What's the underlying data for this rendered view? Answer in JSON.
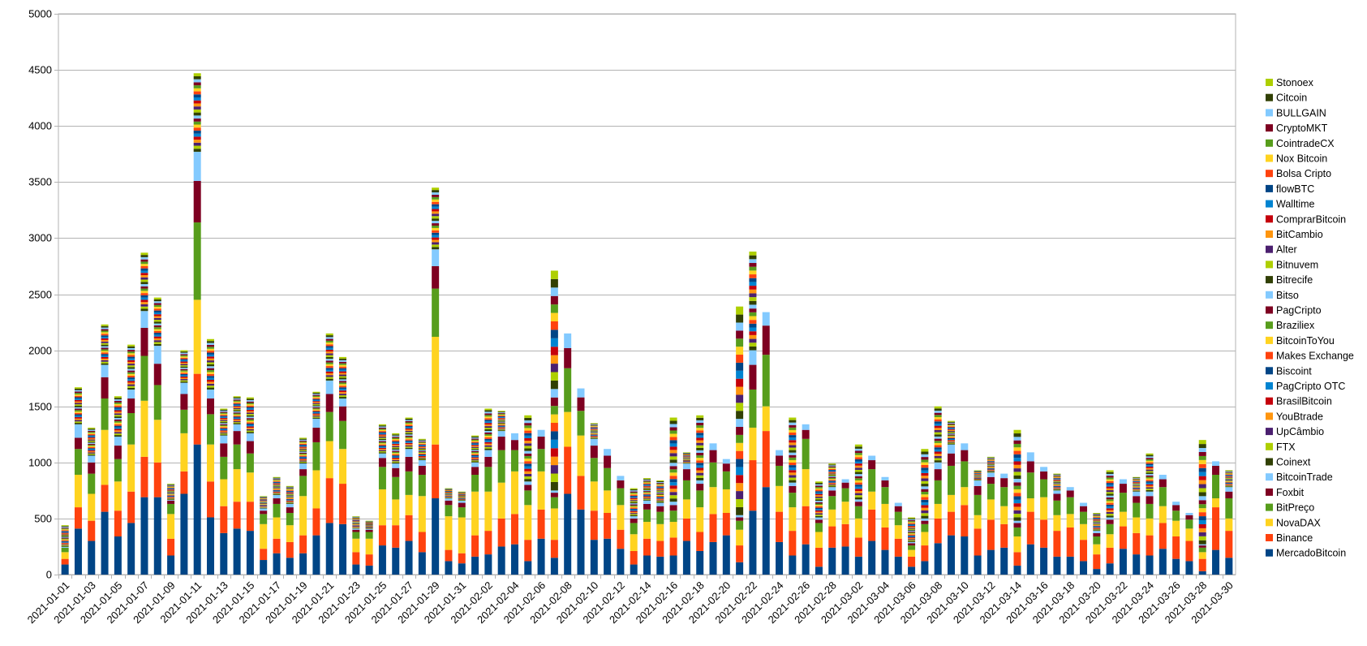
{
  "chart_data": {
    "type": "bar",
    "stacked": true,
    "grid": true,
    "legend_position": "right",
    "ylim": [
      0,
      5000
    ],
    "yticks": [
      0,
      500,
      1000,
      1500,
      2000,
      2500,
      3000,
      3500,
      4000,
      4500,
      5000
    ],
    "x_tick_labels": [
      "2021-01-01",
      "2021-01-03",
      "2021-01-05",
      "2021-01-07",
      "2021-01-09",
      "2021-01-11",
      "2021-01-13",
      "2021-01-15",
      "2021-01-17",
      "2021-01-19",
      "2021-01-21",
      "2021-01-23",
      "2021-01-25",
      "2021-01-27",
      "2021-01-29",
      "2021-01-31",
      "2021-02-02",
      "2021-02-04",
      "2021-02-06",
      "2021-02-08",
      "2021-02-10",
      "2021-02-12",
      "2021-02-14",
      "2021-02-16",
      "2021-02-18",
      "2021-02-20",
      "2021-02-22",
      "2021-02-24",
      "2021-02-26",
      "2021-02-28",
      "2021-03-02",
      "2021-03-04",
      "2021-03-06",
      "2021-03-08",
      "2021-03-10",
      "2021-03-12",
      "2021-03-14",
      "2021-03-16",
      "2021-03-18",
      "2021-03-20",
      "2021-03-22",
      "2021-03-24",
      "2021-03-26",
      "2021-03-28",
      "2021-03-30"
    ],
    "series_names": [
      "MercadoBitcoin",
      "Binance",
      "NovaDAX",
      "BitPreço",
      "Foxbit",
      "BitcoinTrade",
      "Coinext",
      "FTX",
      "UpCâmbio",
      "YouBtrade",
      "BrasilBitcoin",
      "PagCripto OTC",
      "Biscoint",
      "Makes Exchange",
      "BitcoinToYou",
      "Braziliex",
      "PagCripto",
      "Bitso",
      "Bitrecife",
      "Bitnuvem",
      "Alter",
      "BitCambio",
      "ComprarBitcoin",
      "Walltime",
      "flowBTC",
      "Bolsa Cripto",
      "Nox Bitcoin",
      "CointradeCX",
      "CryptoMKT",
      "BULLGAIN",
      "Citcoin",
      "Stonoex"
    ],
    "series_colors": [
      "#004586",
      "#ff420e",
      "#ffd320",
      "#579d1c",
      "#7e0021",
      "#83caff",
      "#314004",
      "#aecf00",
      "#4b1f6f",
      "#ff950e",
      "#c5000b",
      "#0084d1",
      "#004586",
      "#ff420e",
      "#ffd320",
      "#579d1c",
      "#7e0021",
      "#83caff",
      "#314004",
      "#aecf00",
      "#4b1f6f",
      "#ff950e",
      "#c5000b",
      "#0084d1",
      "#004586",
      "#ff420e",
      "#ffd320",
      "#579d1c",
      "#7e0021",
      "#83caff",
      "#314004",
      "#aecf00"
    ],
    "totals": [
      440,
      1670,
      1310,
      2230,
      1590,
      2050,
      2870,
      2470,
      810,
      2000,
      4470,
      2100,
      1480,
      1590,
      1580,
      700,
      870,
      790,
      1220,
      1630,
      2150,
      1940,
      520,
      480,
      1340,
      1260,
      1400,
      1210,
      3450,
      770,
      740,
      1240,
      1480,
      1460,
      990,
      1420,
      920,
      2710,
      2010,
      1380,
      1350,
      1010,
      600,
      770,
      860,
      840,
      1400,
      1090,
      1420,
      1150,
      620,
      2390,
      2880,
      1290,
      910,
      1400,
      570,
      830,
      990,
      720,
      1160,
      940,
      690,
      300,
      510,
      1120,
      1500,
      1370,
      890,
      930,
      1050,
      490,
      1290,
      1070,
      850,
      900,
      770,
      480,
      550,
      930,
      820,
      870,
      1080,
      790,
      650,
      310,
      1200,
      960,
      930
    ],
    "bases": [
      [
        90,
        50,
        60,
        40,
        0
      ],
      [
        410,
        190,
        290,
        230,
        100,
        120
      ],
      [
        300,
        180,
        240,
        180,
        100,
        60
      ],
      [
        560,
        240,
        490,
        280,
        190,
        110
      ],
      [
        340,
        230,
        260,
        200,
        120,
        80
      ],
      [
        460,
        280,
        420,
        280,
        130,
        80
      ],
      [
        690,
        360,
        500,
        400,
        250,
        150
      ],
      [
        690,
        310,
        380,
        310,
        190,
        160
      ],
      [
        170,
        150,
        220,
        90,
        30
      ],
      [
        720,
        200,
        340,
        210,
        140,
        100
      ],
      [
        1160,
        630,
        660,
        690,
        370,
        260
      ],
      [
        510,
        320,
        330,
        270,
        140,
        80
      ],
      [
        370,
        240,
        240,
        200,
        120,
        70
      ],
      [
        410,
        240,
        290,
        220,
        120,
        60
      ],
      [
        390,
        260,
        260,
        170,
        110,
        70
      ],
      [
        130,
        100,
        220,
        90,
        30,
        20
      ],
      [
        190,
        130,
        190,
        120,
        50,
        30
      ],
      [
        150,
        140,
        150,
        110,
        50,
        30
      ],
      [
        190,
        160,
        350,
        180,
        60,
        50
      ],
      [
        350,
        240,
        340,
        250,
        130,
        80
      ],
      [
        460,
        400,
        330,
        260,
        160,
        120
      ],
      [
        450,
        360,
        310,
        250,
        130,
        70
      ],
      [
        90,
        110,
        120,
        60,
        20,
        10
      ],
      [
        80,
        100,
        140,
        60,
        20,
        10
      ],
      [
        260,
        180,
        320,
        200,
        80,
        40
      ],
      [
        240,
        200,
        230,
        200,
        80,
        40
      ],
      [
        300,
        230,
        180,
        210,
        130,
        70
      ],
      [
        200,
        180,
        320,
        190,
        80,
        50
      ],
      [
        680,
        480,
        960,
        430,
        200,
        150
      ],
      [
        120,
        100,
        300,
        100,
        40,
        20
      ],
      [
        100,
        90,
        320,
        90,
        40,
        20
      ],
      [
        160,
        190,
        390,
        150,
        70,
        40
      ],
      [
        180,
        210,
        350,
        220,
        90,
        60
      ],
      [
        250,
        250,
        320,
        290,
        120,
        50
      ],
      [
        270,
        270,
        380,
        190,
        90,
        60
      ],
      [
        120,
        190,
        310,
        130,
        50,
        30
      ],
      [
        320,
        260,
        340,
        200,
        110,
        60
      ],
      [
        150,
        160,
        280,
        100,
        40,
        20
      ],
      [
        720,
        420,
        310,
        390,
        180,
        130
      ],
      [
        580,
        300,
        360,
        220,
        120,
        80
      ],
      [
        310,
        260,
        260,
        210,
        110,
        60
      ],
      [
        320,
        230,
        200,
        200,
        110,
        60
      ],
      [
        230,
        170,
        220,
        150,
        70,
        40
      ],
      [
        90,
        120,
        150,
        100,
        40,
        20
      ],
      [
        170,
        150,
        150,
        110,
        50,
        30
      ],
      [
        160,
        140,
        150,
        110,
        50,
        30
      ],
      [
        170,
        160,
        140,
        100,
        50,
        30
      ],
      [
        300,
        200,
        170,
        170,
        100,
        50
      ],
      [
        210,
        170,
        220,
        150,
        60,
        30
      ],
      [
        290,
        250,
        240,
        220,
        110,
        60
      ],
      [
        350,
        200,
        210,
        160,
        70,
        40
      ],
      [
        110,
        150,
        140,
        80,
        30,
        20
      ],
      [
        570,
        450,
        290,
        340,
        220,
        130
      ],
      [
        780,
        500,
        220,
        460,
        260,
        120
      ],
      [
        290,
        270,
        230,
        180,
        90,
        50
      ],
      [
        170,
        220,
        210,
        130,
        60,
        30
      ],
      [
        270,
        340,
        330,
        270,
        80,
        50
      ],
      [
        70,
        170,
        140,
        80,
        30,
        20
      ],
      [
        240,
        190,
        150,
        120,
        50,
        30
      ],
      [
        250,
        200,
        200,
        120,
        50,
        30
      ],
      [
        160,
        170,
        170,
        110,
        40,
        20
      ],
      [
        300,
        280,
        160,
        200,
        80,
        40
      ],
      [
        220,
        200,
        210,
        150,
        60,
        30
      ],
      [
        160,
        160,
        120,
        120,
        50,
        30
      ],
      [
        70,
        90,
        60,
        40,
        20,
        10
      ],
      [
        120,
        140,
        120,
        70,
        30,
        20
      ],
      [
        280,
        220,
        130,
        210,
        100,
        60
      ],
      [
        350,
        210,
        150,
        260,
        110,
        80
      ],
      [
        340,
        280,
        160,
        230,
        100,
        60
      ],
      [
        170,
        240,
        120,
        180,
        80,
        50
      ],
      [
        220,
        270,
        180,
        140,
        60,
        40
      ],
      [
        240,
        210,
        160,
        170,
        80,
        40
      ],
      [
        80,
        120,
        140,
        80,
        40,
        20
      ],
      [
        270,
        290,
        120,
        230,
        100,
        80
      ],
      [
        240,
        250,
        200,
        160,
        70,
        40
      ],
      [
        160,
        230,
        140,
        130,
        60,
        30
      ],
      [
        160,
        260,
        120,
        150,
        60,
        30
      ],
      [
        120,
        190,
        140,
        110,
        50,
        30
      ],
      [
        50,
        130,
        90,
        70,
        30,
        20
      ],
      [
        100,
        140,
        120,
        90,
        40,
        20
      ],
      [
        230,
        200,
        130,
        170,
        80,
        40
      ],
      [
        180,
        190,
        140,
        130,
        60,
        40
      ],
      [
        170,
        180,
        150,
        130,
        70,
        40
      ],
      [
        230,
        230,
        150,
        170,
        70,
        40
      ],
      [
        140,
        200,
        140,
        90,
        50,
        30
      ],
      [
        120,
        180,
        110,
        80,
        40,
        20
      ],
      [
        30,
        110,
        60,
        40,
        20,
        10
      ],
      [
        220,
        380,
        80,
        210,
        80,
        40
      ],
      [
        150,
        240,
        110,
        180,
        60,
        40
      ],
      [
        110,
        260,
        150,
        160,
        60,
        40
      ]
    ]
  },
  "legend": {
    "items": [
      "Stonoex",
      "Citcoin",
      "BULLGAIN",
      "CryptoMKT",
      "CointradeCX",
      "Nox Bitcoin",
      "Bolsa Cripto",
      "flowBTC",
      "Walltime",
      "ComprarBitcoin",
      "BitCambio",
      "Alter",
      "Bitnuvem",
      "Bitrecife",
      "Bitso",
      "PagCripto",
      "Braziliex",
      "BitcoinToYou",
      "Makes Exchange",
      "Biscoint",
      "PagCripto OTC",
      "BrasilBitcoin",
      "YouBtrade",
      "UpCâmbio",
      "FTX",
      "Coinext",
      "BitcoinTrade",
      "Foxbit",
      "BitPreço",
      "NovaDAX",
      "Binance",
      "MercadoBitcoin"
    ]
  }
}
